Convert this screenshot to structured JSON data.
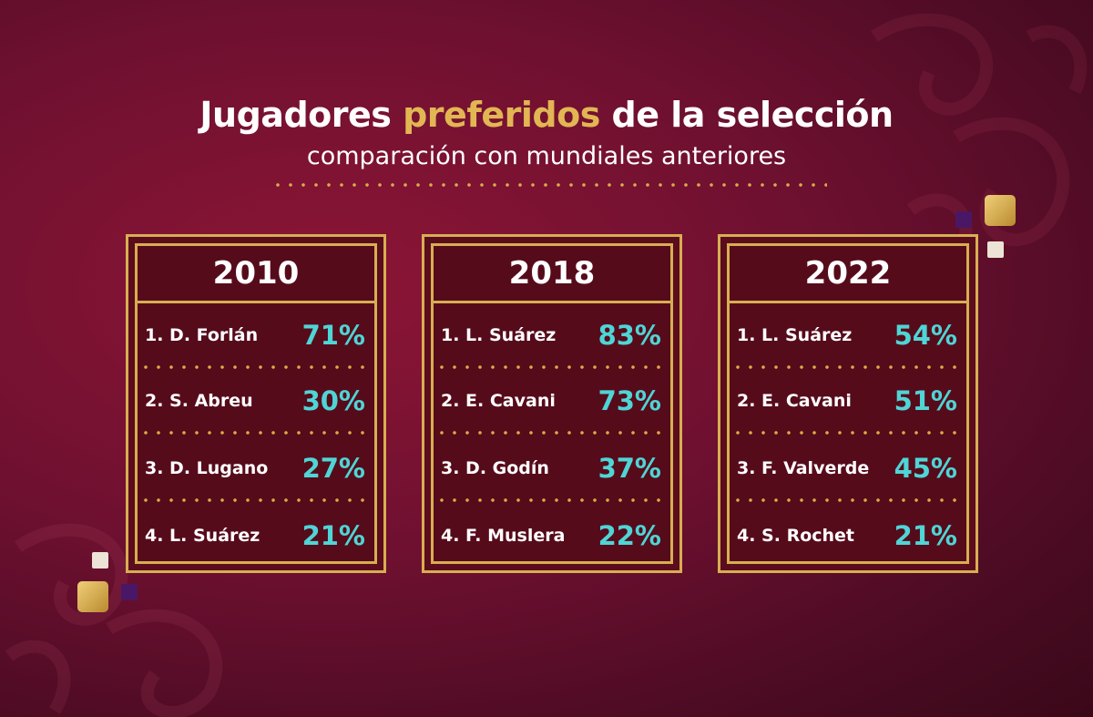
{
  "title": {
    "part1": "Jugadores ",
    "highlight": "preferidos",
    "part2": " de la selección"
  },
  "subtitle": "comparación con mundiales anteriores",
  "cards": [
    {
      "year": "2010",
      "players": [
        {
          "name": "1. D. Forlán",
          "pct": "71%"
        },
        {
          "name": "2. S. Abreu",
          "pct": "30%"
        },
        {
          "name": "3. D. Lugano",
          "pct": "27%"
        },
        {
          "name": "4. L. Suárez",
          "pct": "21%"
        }
      ]
    },
    {
      "year": "2018",
      "players": [
        {
          "name": "1. L. Suárez",
          "pct": "83%"
        },
        {
          "name": "2. E. Cavani",
          "pct": "73%"
        },
        {
          "name": "3. D. Godín",
          "pct": "37%"
        },
        {
          "name": "4. F. Muslera",
          "pct": "22%"
        }
      ]
    },
    {
      "year": "2022",
      "players": [
        {
          "name": "1. L. Suárez",
          "pct": "54%"
        },
        {
          "name": "2. E. Cavani",
          "pct": "51%"
        },
        {
          "name": "3. F. Valverde",
          "pct": "45%"
        },
        {
          "name": "4. S. Rochet",
          "pct": "21%"
        }
      ]
    }
  ],
  "colors": {
    "gold": "#d8ae52",
    "teal": "#4fd5d5",
    "background": "#6e1030"
  }
}
